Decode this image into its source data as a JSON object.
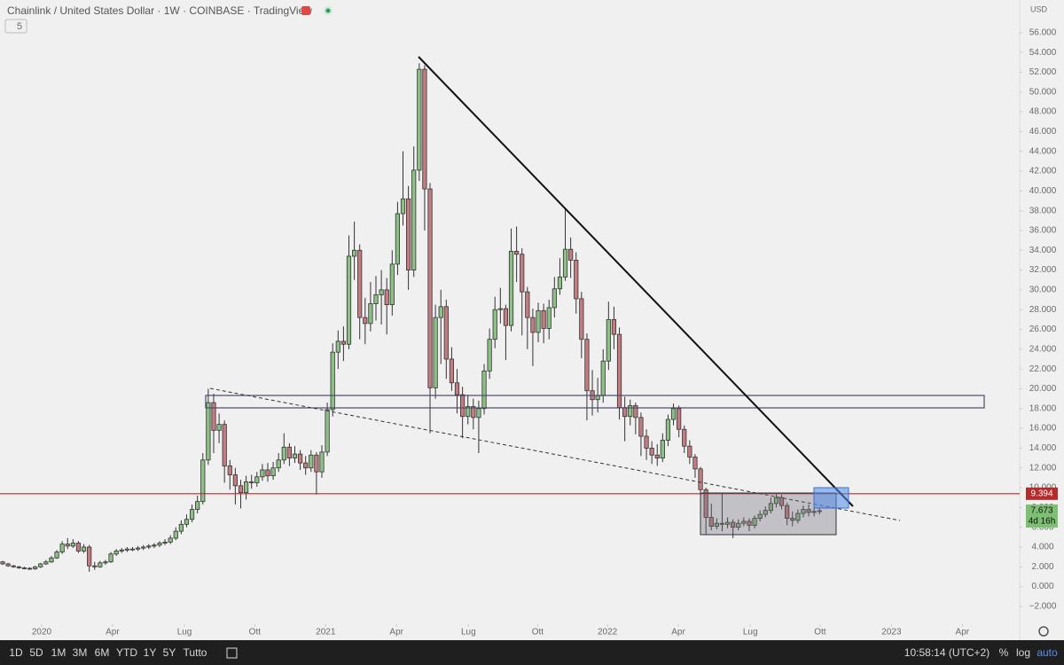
{
  "header": {
    "title": "Chainlink / United States Dollar · 1W · COINBASE · TradingView",
    "badge": "5",
    "currency": "USD"
  },
  "chart_data": {
    "type": "candlestick",
    "up_color": "#8cc084",
    "down_color": "#c27c82",
    "open": [
      2.5,
      2.3,
      2.1,
      2.0,
      1.9,
      1.85,
      1.8,
      2.0,
      2.3,
      2.5,
      2.9,
      3.5,
      4.3,
      4.1,
      4.4,
      3.6,
      4.0,
      2.1,
      2.0,
      2.4,
      2.5,
      3.3,
      3.6,
      3.7,
      3.8,
      3.8,
      3.9,
      4.0,
      4.1,
      4.2,
      4.4,
      4.5,
      4.9,
      5.6,
      6.3,
      6.8,
      7.8,
      8.6,
      12.8,
      18.6,
      15.8,
      16.4,
      12.2,
      11.3,
      10.2,
      9.5,
      10.6,
      10.5,
      11.1,
      11.8,
      11.2,
      12.0,
      12.8,
      14.1,
      13.0,
      13.4,
      12.5,
      12.0,
      13.3,
      11.6,
      13.6,
      17.9,
      23.7,
      24.8,
      24.5,
      33.4,
      34.0,
      27.2,
      26.6,
      28.6,
      29.5,
      30.0,
      28.5,
      32.6,
      37.7,
      39.2,
      32.0,
      42.1,
      52.3,
      40.2,
      20.1,
      27.2,
      28.3,
      23.0,
      20.6,
      19.4,
      17.2,
      18.2,
      17.1,
      18.0,
      21.8,
      25.0,
      28.0,
      28.1,
      26.4,
      33.9,
      33.6,
      29.8,
      27.2,
      25.7,
      27.9,
      26.1,
      28.2,
      30.1,
      31.3,
      34.1,
      33.0,
      29.1,
      25.0,
      19.8,
      18.9,
      19.3,
      22.8,
      27.0,
      25.5,
      18.1,
      17.2,
      18.3,
      17.1,
      15.2,
      14.0,
      13.3,
      13.0,
      14.8,
      16.9,
      18.0,
      15.9,
      14.2,
      13.1,
      11.9,
      9.8,
      7.0,
      6.1,
      6.4,
      6.3,
      6.5,
      6.0,
      6.4,
      6.6,
      6.2,
      6.9,
      7.3,
      7.7,
      8.4,
      9.0,
      8.2,
      6.9,
      6.7,
      7.4,
      7.8,
      7.5,
      7.6
    ],
    "high": [
      2.6,
      2.4,
      2.2,
      2.1,
      2.0,
      1.95,
      2.1,
      2.4,
      2.7,
      3.1,
      3.7,
      4.6,
      4.9,
      4.8,
      4.6,
      4.3,
      4.2,
      2.5,
      2.6,
      2.7,
      3.5,
      3.8,
      3.9,
      4.0,
      4.0,
      4.1,
      4.2,
      4.3,
      4.4,
      4.6,
      4.8,
      5.2,
      6.0,
      6.7,
      7.3,
      8.3,
      9.2,
      13.5,
      20.0,
      19.5,
      17.5,
      16.8,
      12.8,
      12.0,
      10.8,
      11.2,
      11.3,
      11.6,
      12.4,
      12.5,
      12.6,
      13.5,
      15.5,
      14.5,
      14.2,
      13.8,
      13.2,
      13.8,
      13.6,
      14.3,
      18.6,
      24.6,
      25.9,
      26.3,
      35.5,
      36.9,
      34.6,
      29.2,
      30.8,
      31.4,
      32.0,
      31.2,
      34.0,
      38.9,
      44.0,
      40.5,
      44.5,
      52.9,
      52.7,
      40.8,
      28.5,
      30.0,
      29.0,
      24.2,
      22.0,
      20.2,
      19.4,
      19.0,
      18.8,
      22.5,
      26.1,
      29.3,
      30.2,
      28.5,
      36.2,
      36.4,
      34.2,
      30.3,
      28.1,
      28.7,
      28.6,
      29.0,
      31.3,
      33.2,
      38.3,
      35.3,
      33.8,
      29.8,
      25.6,
      21.9,
      21.1,
      24.0,
      28.8,
      28.3,
      26.2,
      19.2,
      18.9,
      18.6,
      17.6,
      15.9,
      14.7,
      14.4,
      15.5,
      17.4,
      18.5,
      18.3,
      16.3,
      14.8,
      13.4,
      12.1,
      10.0,
      8.4,
      6.9,
      9.4,
      7.0,
      6.8,
      6.8,
      7.0,
      6.9,
      7.2,
      7.7,
      8.1,
      9.0,
      9.4,
      9.3,
      8.5,
      7.6,
      7.8,
      8.2,
      8.3,
      8.0,
      7.9
    ],
    "low": [
      2.2,
      2.0,
      1.9,
      1.8,
      1.75,
      1.7,
      1.7,
      1.9,
      2.2,
      2.4,
      2.8,
      3.3,
      3.8,
      3.9,
      3.4,
      3.4,
      1.5,
      1.7,
      1.9,
      2.2,
      2.4,
      3.1,
      3.4,
      3.5,
      3.6,
      3.6,
      3.7,
      3.8,
      3.9,
      4.0,
      4.2,
      4.3,
      4.7,
      5.3,
      6.0,
      6.5,
      7.4,
      8.3,
      12.3,
      13.5,
      14.5,
      10.5,
      9.8,
      8.3,
      7.9,
      8.8,
      9.9,
      10.1,
      10.7,
      10.6,
      10.8,
      11.6,
      12.4,
      12.2,
      12.5,
      11.8,
      11.3,
      11.6,
      9.3,
      11.0,
      13.2,
      17.2,
      22.0,
      22.8,
      24.0,
      31.0,
      25.0,
      24.5,
      25.8,
      26.9,
      26.5,
      25.5,
      27.4,
      31.5,
      36.5,
      30.0,
      31.3,
      41.0,
      36.0,
      15.5,
      19.0,
      22.5,
      21.0,
      19.8,
      17.5,
      15.0,
      16.4,
      15.9,
      13.5,
      17.4,
      21.0,
      24.1,
      26.6,
      22.9,
      25.8,
      30.8,
      25.4,
      24.0,
      22.3,
      24.7,
      24.6,
      25.0,
      27.2,
      29.5,
      30.9,
      31.2,
      27.6,
      23.1,
      16.8,
      17.3,
      17.6,
      18.6,
      21.9,
      24.0,
      16.9,
      14.7,
      16.3,
      15.4,
      13.2,
      12.8,
      12.4,
      12.2,
      12.6,
      14.2,
      16.3,
      15.1,
      13.5,
      12.4,
      11.0,
      9.0,
      5.3,
      5.7,
      5.8,
      5.6,
      5.9,
      4.9,
      5.7,
      6.1,
      5.6,
      5.9,
      6.6,
      7.0,
      7.4,
      8.0,
      7.8,
      6.2,
      6.1,
      6.4,
      7.0,
      7.1,
      7.1,
      7.3
    ],
    "close": [
      2.3,
      2.1,
      2.0,
      1.9,
      1.85,
      1.8,
      2.0,
      2.3,
      2.5,
      2.9,
      3.5,
      4.3,
      4.1,
      4.4,
      3.6,
      4.0,
      2.1,
      2.0,
      2.4,
      2.5,
      3.3,
      3.6,
      3.7,
      3.8,
      3.8,
      3.9,
      4.0,
      4.1,
      4.2,
      4.4,
      4.5,
      4.9,
      5.6,
      6.3,
      6.8,
      7.8,
      8.6,
      12.8,
      18.6,
      15.8,
      16.4,
      12.2,
      11.3,
      10.2,
      9.5,
      10.6,
      10.5,
      11.1,
      11.8,
      11.2,
      12.0,
      12.8,
      14.1,
      13.0,
      13.4,
      12.5,
      12.0,
      13.3,
      11.6,
      13.6,
      17.9,
      23.7,
      24.8,
      24.5,
      33.4,
      34.0,
      27.2,
      26.6,
      28.6,
      29.5,
      30.0,
      28.5,
      32.6,
      37.7,
      39.2,
      32.0,
      42.1,
      52.3,
      40.2,
      20.1,
      27.2,
      28.3,
      23.0,
      20.6,
      19.4,
      17.2,
      18.2,
      17.1,
      18.0,
      21.8,
      25.0,
      28.0,
      28.1,
      26.4,
      33.9,
      33.6,
      29.8,
      27.2,
      25.7,
      27.9,
      26.1,
      28.2,
      30.1,
      31.3,
      34.1,
      33.0,
      29.1,
      25.0,
      19.8,
      18.9,
      19.3,
      22.8,
      27.0,
      25.5,
      18.1,
      17.2,
      18.3,
      17.1,
      15.2,
      14.0,
      13.3,
      13.0,
      14.8,
      16.9,
      18.0,
      15.9,
      14.2,
      13.1,
      11.9,
      9.8,
      7.0,
      6.1,
      6.4,
      6.3,
      6.5,
      6.0,
      6.4,
      6.6,
      6.2,
      6.9,
      7.3,
      7.7,
      8.4,
      9.0,
      8.2,
      6.9,
      6.7,
      7.4,
      7.8,
      7.5,
      7.6,
      7.673
    ],
    "xlim": [
      -0.5,
      188
    ],
    "xticks": [
      {
        "value": 7.2,
        "label": "2020"
      },
      {
        "value": 20.3,
        "label": "Apr"
      },
      {
        "value": 33.6,
        "label": "Lug"
      },
      {
        "value": 46.6,
        "label": "Ott"
      },
      {
        "value": 59.7,
        "label": "2021"
      },
      {
        "value": 72.8,
        "label": "Apr"
      },
      {
        "value": 86.1,
        "label": "Lug"
      },
      {
        "value": 98.9,
        "label": "Ott"
      },
      {
        "value": 111.8,
        "label": "2022"
      },
      {
        "value": 124.9,
        "label": "Apr"
      },
      {
        "value": 138.2,
        "label": "Lug"
      },
      {
        "value": 151.1,
        "label": "Ott"
      },
      {
        "value": 164.3,
        "label": "2023"
      },
      {
        "value": 177.4,
        "label": "Apr"
      }
    ],
    "ylim": [
      -3.8,
      59.3
    ],
    "yticks": [
      {
        "value": -2,
        "label": "−2.000"
      },
      {
        "value": 0,
        "label": "0.000"
      },
      {
        "value": 2,
        "label": "2.000"
      },
      {
        "value": 4,
        "label": "4.000"
      },
      {
        "value": 6,
        "label": "6.000"
      },
      {
        "value": 8,
        "label": "8.000"
      },
      {
        "value": 10,
        "label": "10.000"
      },
      {
        "value": 12,
        "label": "12.000"
      },
      {
        "value": 14,
        "label": "14.000"
      },
      {
        "value": 16,
        "label": "16.000"
      },
      {
        "value": 18,
        "label": "18.000"
      },
      {
        "value": 20,
        "label": "20.000"
      },
      {
        "value": 22,
        "label": "22.000"
      },
      {
        "value": 24,
        "label": "24.000"
      },
      {
        "value": 26,
        "label": "26.000"
      },
      {
        "value": 28,
        "label": "28.000"
      },
      {
        "value": 30,
        "label": "30.000"
      },
      {
        "value": 32,
        "label": "32.000"
      },
      {
        "value": 34,
        "label": "34.000"
      },
      {
        "value": 36,
        "label": "36.000"
      },
      {
        "value": 38,
        "label": "38.000"
      },
      {
        "value": 40,
        "label": "40.000"
      },
      {
        "value": 42,
        "label": "42.000"
      },
      {
        "value": 44,
        "label": "44.000"
      },
      {
        "value": 46,
        "label": "46.000"
      },
      {
        "value": 48,
        "label": "48.000"
      },
      {
        "value": 50,
        "label": "50.000"
      },
      {
        "value": 52,
        "label": "52.000"
      },
      {
        "value": 54,
        "label": "54.000"
      },
      {
        "value": 56,
        "label": "56.000"
      }
    ],
    "alert_level": 9.394,
    "alert_color": "#b52a2a",
    "last_price": 7.673,
    "last_color": "#7dbf73",
    "countdown": "4d 16h"
  },
  "toolbar": {
    "ranges": [
      "1D",
      "5D",
      "1M",
      "3M",
      "6M",
      "YTD",
      "1Y",
      "5Y",
      "Tutto"
    ],
    "clock": "10:58:14 (UTC+2)",
    "options": [
      "%",
      "log",
      "auto"
    ]
  }
}
